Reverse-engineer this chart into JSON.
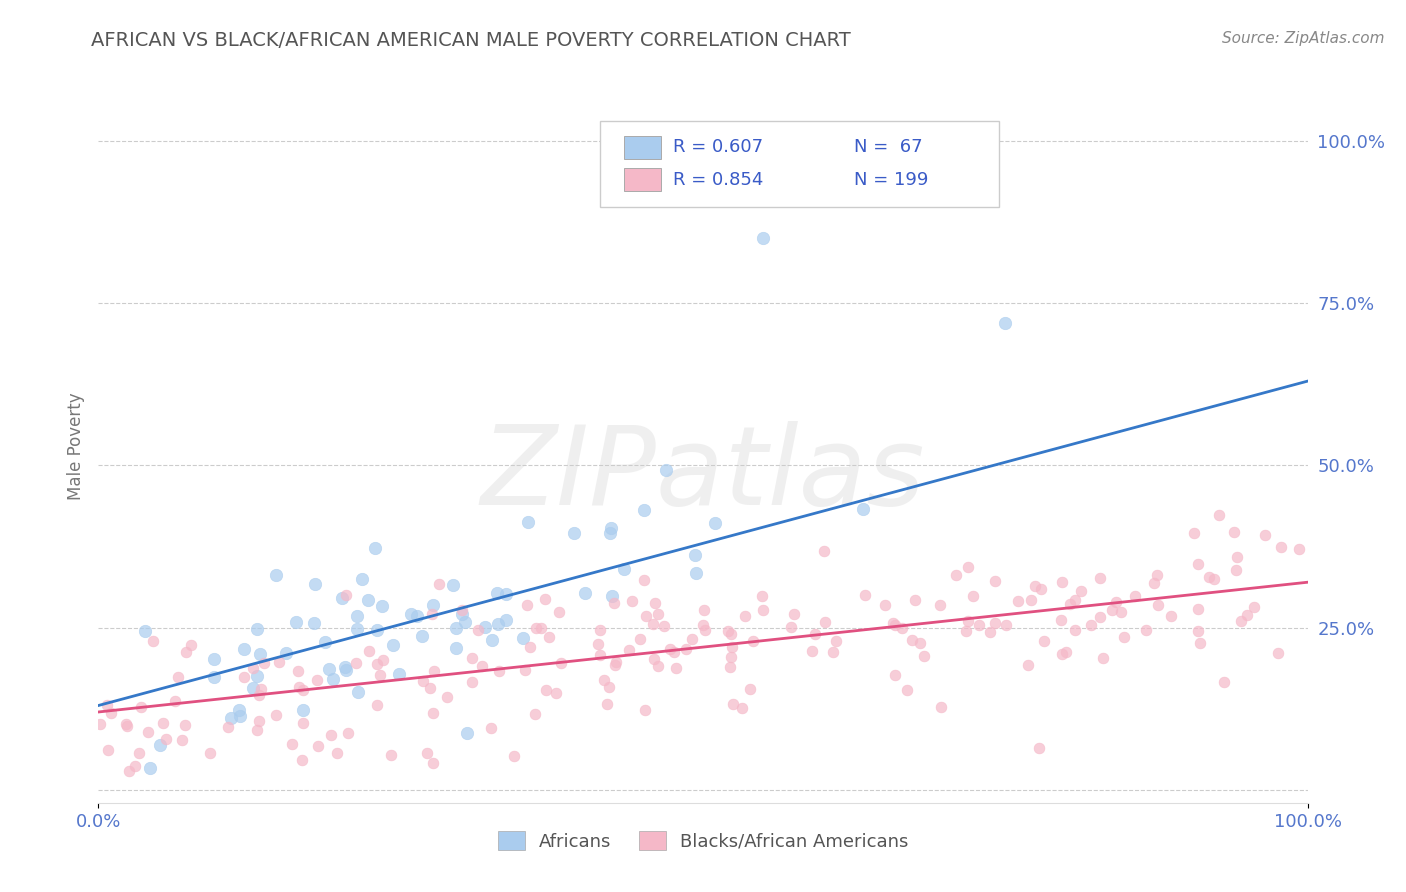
{
  "title": "AFRICAN VS BLACK/AFRICAN AMERICAN MALE POVERTY CORRELATION CHART",
  "source": "Source: ZipAtlas.com",
  "ylabel": "Male Poverty",
  "xlabel": "",
  "xlim": [
    0.0,
    1.0
  ],
  "ylim": [
    -0.02,
    1.08
  ],
  "ytick_vals": [
    0.25,
    0.5,
    0.75,
    1.0
  ],
  "ytick_labels": [
    "25.0%",
    "50.0%",
    "75.0%",
    "100.0%"
  ],
  "xtick_vals": [
    0.0,
    1.0
  ],
  "xtick_labels": [
    "0.0%",
    "100.0%"
  ],
  "legend_r1": "R = 0.607",
  "legend_n1": "N =  67",
  "legend_r2": "R = 0.854",
  "legend_n2": "N = 199",
  "blue_color": "#aaccee",
  "pink_color": "#f5b8c8",
  "blue_line_color": "#3578c8",
  "pink_line_color": "#e05080",
  "tick_color": "#5577cc",
  "legend_text_color": "#3a5bc7",
  "title_color": "#555555",
  "watermark": "ZIPatlas",
  "background_color": "#ffffff",
  "grid_color": "#cccccc",
  "african_seed": 42,
  "black_seed": 7,
  "african_n": 67,
  "black_n": 199,
  "african_R": 0.607,
  "black_R": 0.854,
  "af_line_x0": 0.0,
  "af_line_y0": 0.13,
  "af_line_x1": 1.0,
  "af_line_y1": 0.63,
  "bl_line_x0": 0.0,
  "bl_line_y0": 0.12,
  "bl_line_x1": 1.0,
  "bl_line_y1": 0.32
}
